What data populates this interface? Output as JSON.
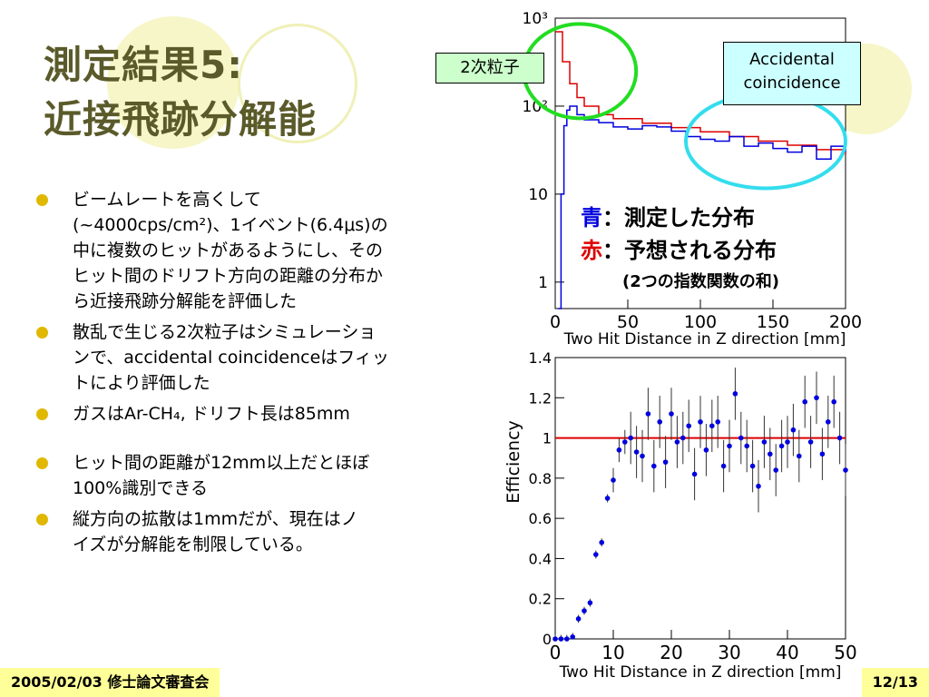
{
  "title": {
    "line1": "測定結果5:",
    "line2": "近接飛跡分解能"
  },
  "bullets": [
    {
      "lines": [
        "ビームレートを高くして",
        "(~4000cps/cm²)、1イベント(6.4μs)の",
        "中に複数のヒットがあるようにし、その",
        "ヒット間のドリフト方向の距離の分布か",
        "ら近接飛跡分解能を評価した"
      ]
    },
    {
      "lines": [
        "散乱で生じる2次粒子はシミュレーショ",
        "ンで、accidental coincidenceはフィッ",
        "トにより評価した"
      ]
    },
    {
      "lines": [
        "ガスはAr-CH₄, ドリフト長は85mm"
      ]
    },
    {
      "lines": [
        "ヒット間の距離が12mm以上だとほぼ",
        "100%識別できる"
      ]
    },
    {
      "lines": [
        "縦方向の拡散は1mmだが、現在はノ",
        "イズが分解能を制限している。"
      ]
    }
  ],
  "footer": {
    "left": "2005/02/03 修士論文審査会",
    "right": "12/13"
  },
  "annotations": {
    "secondary": "2次粒子",
    "accidental_line1": "Accidental",
    "accidental_line2": "coincidence",
    "blue_char": "青",
    "blue_text": "：測定した分布",
    "red_char": "赤",
    "red_text": "：予想される分布",
    "red_sub": "(2つの指数関数の和)"
  },
  "colors": {
    "bullet": "#e0b800",
    "title": "#5a5a2a",
    "measured": "#0000dd",
    "expected": "#dd0000",
    "circle_green": "#22dd22",
    "circle_cyan": "#33ddee",
    "footer_bg": "#ffff99"
  },
  "chart_data": [
    {
      "type": "line",
      "xlabel": "Two Hit Distance in Z direction [mm]",
      "ylabel": "",
      "xlim": [
        0,
        200
      ],
      "ylim": [
        0.5,
        1000
      ],
      "yscale": "log",
      "xticks": [
        "0",
        "50",
        "100",
        "150",
        "200"
      ],
      "yticks": [
        "1",
        "10",
        "10²",
        "10³"
      ],
      "series": [
        {
          "x": [
            2,
            4,
            6,
            8,
            10,
            15,
            20,
            30,
            40,
            50,
            60,
            70,
            80,
            90,
            100,
            110,
            120,
            130,
            140,
            150,
            160,
            170,
            180,
            190,
            200
          ],
          "values": [
            0.5,
            10,
            60,
            90,
            100,
            80,
            70,
            65,
            58,
            55,
            60,
            58,
            52,
            45,
            42,
            40,
            45,
            35,
            38,
            33,
            30,
            35,
            25,
            35,
            30
          ]
        },
        {
          "x": [
            0,
            5,
            10,
            15,
            20,
            30,
            40,
            60,
            80,
            100,
            120,
            140,
            160,
            180,
            200
          ],
          "values": [
            700,
            320,
            180,
            125,
            100,
            80,
            72,
            64,
            57,
            51,
            45,
            40,
            36,
            32,
            28
          ]
        }
      ]
    },
    {
      "type": "scatter",
      "xlabel": "Two Hit Distance in Z direction [mm]",
      "ylabel": "Efficiency",
      "xlim": [
        0,
        50
      ],
      "ylim": [
        0,
        1.4
      ],
      "xticks": [
        "0",
        "10",
        "20",
        "30",
        "40",
        "50"
      ],
      "yticks": [
        "0",
        "0.2",
        "0.4",
        "0.6",
        "0.8",
        "1",
        "1.2",
        "1.4"
      ],
      "reference_line": 1.0,
      "series": [
        {
          "x": [
            0,
            1,
            2,
            3,
            4,
            5,
            6,
            7,
            8,
            9,
            10,
            11,
            12,
            13,
            14,
            15,
            16,
            17,
            18,
            19,
            20,
            21,
            22,
            23,
            24,
            25,
            26,
            27,
            28,
            29,
            30,
            31,
            32,
            33,
            34,
            35,
            36,
            37,
            38,
            39,
            40,
            41,
            42,
            43,
            44,
            45,
            46,
            47,
            48,
            49,
            50
          ],
          "values": [
            0,
            0,
            0,
            0.01,
            0.1,
            0.14,
            0.18,
            0.42,
            0.48,
            0.7,
            0.79,
            0.94,
            0.98,
            1.0,
            0.93,
            0.91,
            1.12,
            0.86,
            1.08,
            0.88,
            1.12,
            0.98,
            1.0,
            1.06,
            0.82,
            1.08,
            0.94,
            1.06,
            1.08,
            0.86,
            0.96,
            1.22,
            1.0,
            0.96,
            0.86,
            0.76,
            0.98,
            0.92,
            0.84,
            0.96,
            0.98,
            1.04,
            0.91,
            1.18,
            0.98,
            1.2,
            0.92,
            1.08,
            1.18,
            1.0,
            0.84
          ]
        }
      ]
    }
  ]
}
